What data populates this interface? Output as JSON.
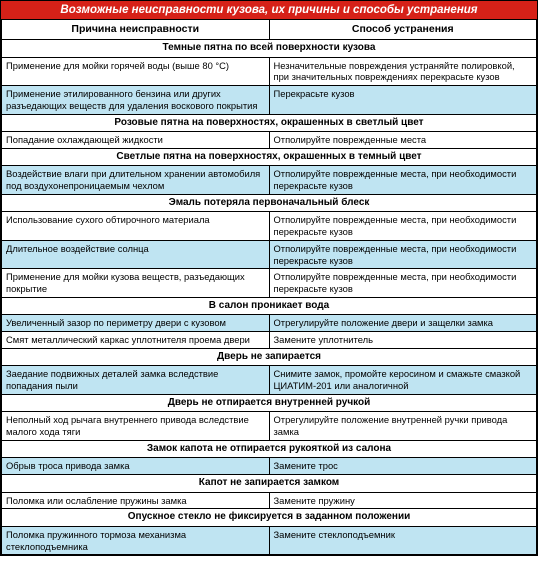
{
  "title": "Возможные неисправности кузова, их причины и способы устранения",
  "columns": {
    "cause": "Причина неисправности",
    "fix": "Способ устранения"
  },
  "colors": {
    "header_bg": "#d62118",
    "header_fg": "#ffffff",
    "row_white": "#ffffff",
    "row_blue": "#bfe4f2",
    "border": "#000000"
  },
  "sections": [
    {
      "heading": "Темные пятна по всей поверхности кузова",
      "rows": [
        {
          "bg": "white",
          "cause": "Применение для мойки горячей воды (выше 80 °C)",
          "fix": "Незначительные повреждения устраняйте полировкой, при значительных повреждениях перекрасьте кузов"
        },
        {
          "bg": "blue",
          "cause": "Применение этилированного бензина или других разъедающих веществ для удаления воскового покрытия",
          "fix": "Перекрасьте кузов"
        }
      ]
    },
    {
      "heading": "Розовые пятна на поверхностях, окрашенных в светлый цвет",
      "rows": [
        {
          "bg": "white",
          "cause": "Попадание охлаждающей жидкости",
          "fix": "Отполируйте поврежденные места"
        }
      ]
    },
    {
      "heading": "Светлые пятна на поверхностях, окрашенных в темный цвет",
      "rows": [
        {
          "bg": "blue",
          "cause": "Воздействие влаги при длительном хранении автомобиля под воздухонепроницаемым чехлом",
          "fix": "Отполируйте поврежденные места, при необходимости перекрасьте кузов"
        }
      ]
    },
    {
      "heading": "Эмаль потеряла первоначальный блеск",
      "rows": [
        {
          "bg": "white",
          "cause": "Использование сухого обтирочного материала",
          "fix": "Отполируйте поврежденные места, при необходимости перекрасьте кузов"
        },
        {
          "bg": "blue",
          "cause": "Длительное воздействие солнца",
          "fix": "Отполируйте поврежденные места, при необходимости перекрасьте кузов"
        },
        {
          "bg": "white",
          "cause": "Применение для мойки кузова веществ, разъедающих покрытие",
          "fix": "Отполируйте поврежденные места, при необходимости перекрасьте кузов"
        }
      ]
    },
    {
      "heading": "В салон проникает вода",
      "rows": [
        {
          "bg": "blue",
          "cause": "Увеличенный зазор по периметру двери с кузовом",
          "fix": "Отрегулируйте положение двери и защелки замка"
        },
        {
          "bg": "white",
          "cause": "Смят металлический каркас уплотнителя проема двери",
          "fix": "Замените уплотнитель"
        }
      ]
    },
    {
      "heading": "Дверь не запирается",
      "rows": [
        {
          "bg": "blue",
          "cause": "Заедание подвижных деталей замка вследствие попадания пыли",
          "fix": "Снимите замок, промойте керосином и смажьте смазкой ЦИАТИМ-201 или аналогичной"
        }
      ]
    },
    {
      "heading": "Дверь не отпирается внутренней ручкой",
      "rows": [
        {
          "bg": "white",
          "cause": "Неполный ход рычага внутреннего привода вследствие малого хода тяги",
          "fix": "Отрегулируйте положение внутренней ручки привода замка"
        }
      ]
    },
    {
      "heading": "Замок капота не отпирается рукояткой из салона",
      "rows": [
        {
          "bg": "blue",
          "cause": "Обрыв троса привода замка",
          "fix": "Замените трос"
        }
      ]
    },
    {
      "heading": "Капот не запирается замком",
      "rows": [
        {
          "bg": "white",
          "cause": "Поломка или ослабление пружины замка",
          "fix": "Замените пружину"
        }
      ]
    },
    {
      "heading": "Опускное стекло не фиксируется в заданном положении",
      "rows": [
        {
          "bg": "blue",
          "cause": "Поломка пружинного тормоза механизма стеклоподъемника",
          "fix": "Замените стеклоподъемник"
        }
      ]
    }
  ]
}
